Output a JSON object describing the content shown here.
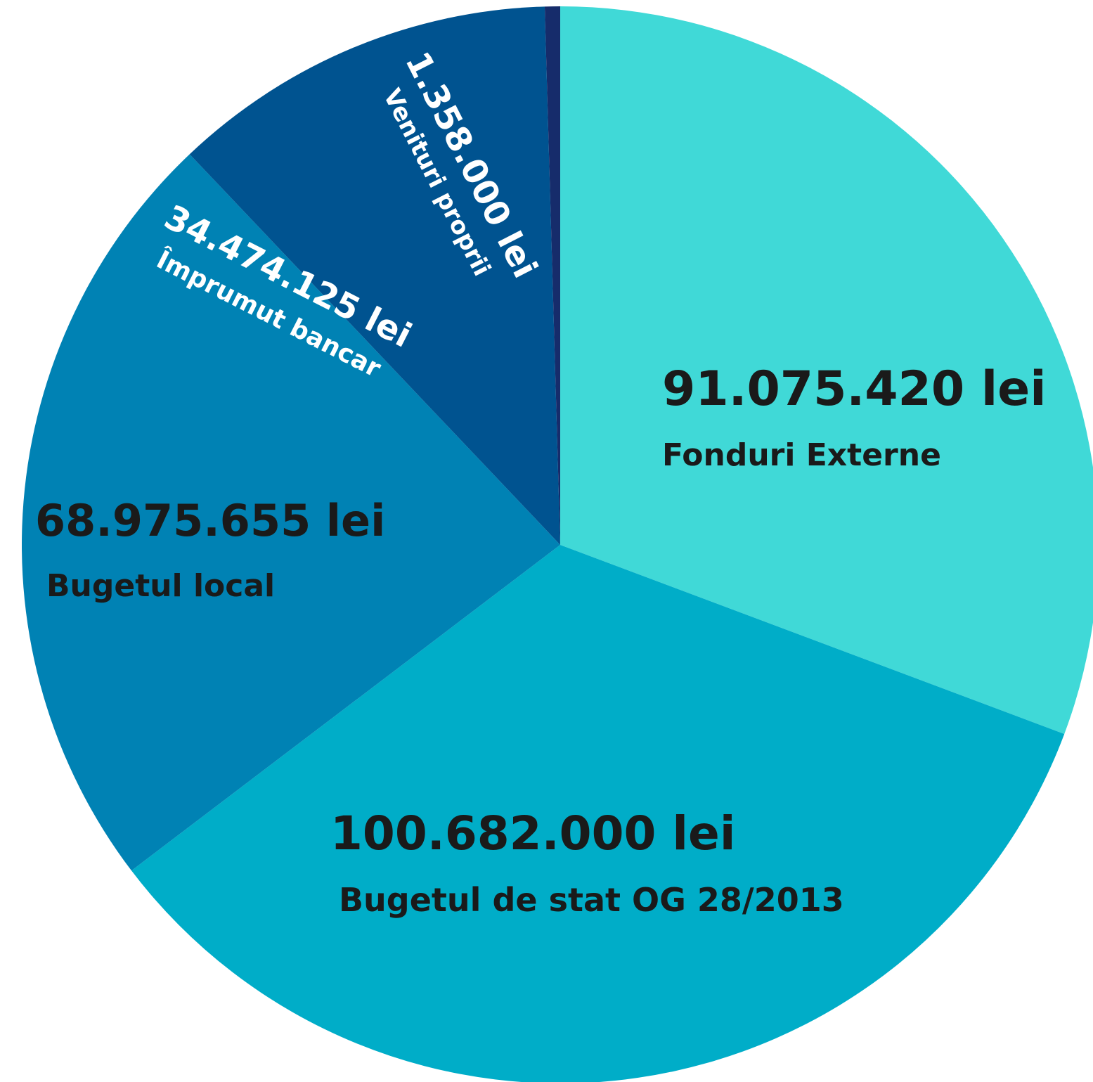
{
  "chart_data": {
    "type": "pie",
    "unit": "lei",
    "slices": [
      {
        "value_label": "91.075.420 lei",
        "category": "Fonduri Externe",
        "value": 91075420,
        "color": "#40d9d7"
      },
      {
        "value_label": "100.682.000 lei",
        "category": "Bugetul de stat OG 28/2013",
        "value": 100682000,
        "color": "#00adc8"
      },
      {
        "value_label": "68.975.655 lei",
        "category": "Bugetul local",
        "value": 68975655,
        "color": "#0082b4"
      },
      {
        "value_label": "34.474.125 lei",
        "category": "Împrumut bancar",
        "value": 34474125,
        "color": "#005390"
      },
      {
        "value_label": "1.358.000 lei",
        "category": "Venituri proprii",
        "value": 1358000,
        "color": "#162c6b"
      }
    ]
  }
}
